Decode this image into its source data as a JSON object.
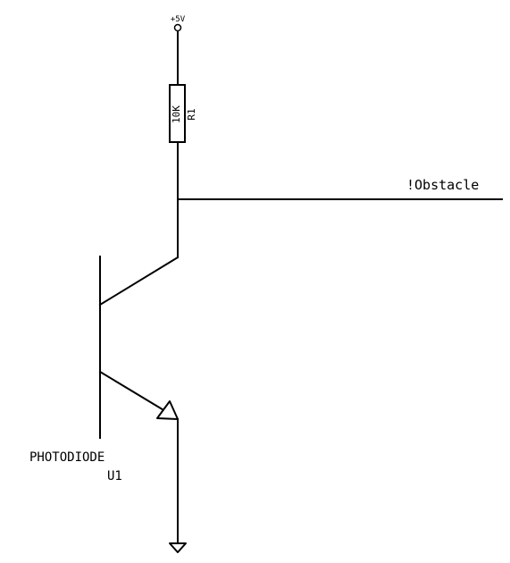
{
  "power": {
    "label": "+5V"
  },
  "resistor": {
    "value": "10K",
    "designator": "R1"
  },
  "net": {
    "label": "!Obstacle"
  },
  "phototransistor": {
    "name": "PHOTODIODE",
    "designator": "U1"
  }
}
